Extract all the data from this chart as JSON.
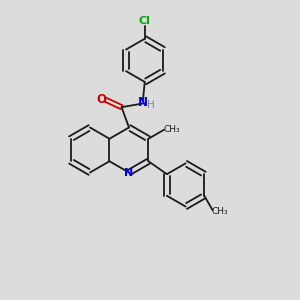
{
  "background_color": "#dcdcdc",
  "bond_color": "#1a1a1a",
  "N_color": "#0000ee",
  "O_color": "#cc0000",
  "Cl_color": "#00aa00",
  "H_color": "#888888",
  "line_width": 1.3,
  "figsize": [
    3.0,
    3.0
  ],
  "dpi": 100,
  "xlim": [
    0,
    10
  ],
  "ylim": [
    0,
    10
  ]
}
